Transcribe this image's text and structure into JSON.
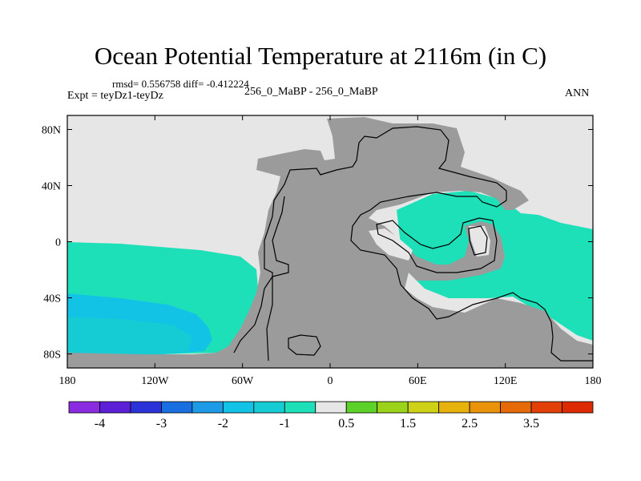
{
  "title": "Ocean Potential Temperature at 2116m (in C)",
  "stats": "rmsd= 0.556758 diff= -0.412224",
  "expt_label": "Expt = teyDz1-teyDz",
  "center_label": "256_0_MaBP - 256_0_MaBP",
  "season": "ANN",
  "map": {
    "projection": "cylindrical-equidistant",
    "lon_range": [
      -180,
      180
    ],
    "lat_range": [
      -90,
      90
    ],
    "land_color": "#9b9b9b",
    "no_change_color": "#e6e6e6",
    "x_ticks": [
      {
        "lon": -180,
        "label": "180"
      },
      {
        "lon": -120,
        "label": "120W"
      },
      {
        "lon": -60,
        "label": "60W"
      },
      {
        "lon": 0,
        "label": "0"
      },
      {
        "lon": 60,
        "label": "60E"
      },
      {
        "lon": 120,
        "label": "120E"
      },
      {
        "lon": 180,
        "label": "180"
      }
    ],
    "y_ticks": [
      {
        "lat": 80,
        "label": "80N"
      },
      {
        "lat": 40,
        "label": "40N"
      },
      {
        "lat": 0,
        "label": "0"
      },
      {
        "lat": -40,
        "label": "40S"
      },
      {
        "lat": -80,
        "label": "80S"
      }
    ]
  },
  "colorbar": {
    "colors": [
      "#8a2be2",
      "#5a1fd6",
      "#2b32d8",
      "#1a6fe0",
      "#1e9be6",
      "#12c3e6",
      "#16ccd4",
      "#1de0b8",
      "#e6e6e6",
      "#5cd12a",
      "#9ad31a",
      "#cfd116",
      "#e7b20c",
      "#e8930a",
      "#e66a08",
      "#e24006",
      "#de2a04"
    ],
    "labels": [
      {
        "after_index": 0,
        "text": "-4"
      },
      {
        "after_index": 2,
        "text": "-3"
      },
      {
        "after_index": 4,
        "text": "-2"
      },
      {
        "after_index": 6,
        "text": "-1"
      },
      {
        "after_index": 8,
        "text": "0.5"
      },
      {
        "after_index": 10,
        "text": "1.5"
      },
      {
        "after_index": 12,
        "text": "2.5"
      },
      {
        "after_index": 14,
        "text": "3.5"
      }
    ]
  }
}
